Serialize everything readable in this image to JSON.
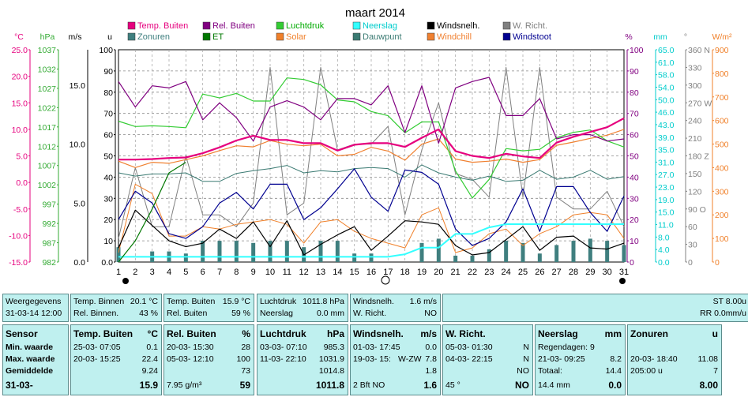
{
  "title": "maart 2014",
  "legend": [
    {
      "label": "Temp. Buiten",
      "color": "#e6007e",
      "textColor": "#e6007e"
    },
    {
      "label": "Rel. Buiten",
      "color": "#800080",
      "textColor": "#800080"
    },
    {
      "label": "Luchtdruk",
      "color": "#33cc33",
      "textColor": "#00aa00"
    },
    {
      "label": "Neerslag",
      "color": "#33ffff",
      "textColor": "#00cccc"
    },
    {
      "label": "Windsnelh.",
      "color": "#000000",
      "textColor": "#000000"
    },
    {
      "label": "W. Richt.",
      "color": "#808080",
      "textColor": "#808080"
    },
    {
      "label": "Zonuren",
      "color": "#3f7f7f",
      "textColor": "#3f7f7f"
    },
    {
      "label": "ET",
      "color": "#007700",
      "textColor": "#007700"
    },
    {
      "label": "Solar",
      "color": "#f0802a",
      "textColor": "#f0802a"
    },
    {
      "label": "Dauwpunt",
      "color": "#3a7a72",
      "textColor": "#3a7a72"
    },
    {
      "label": "Windchill",
      "color": "#f08030",
      "textColor": "#f08030"
    },
    {
      "label": "Windstoot",
      "color": "#000090",
      "textColor": "#000090"
    }
  ],
  "axes": {
    "temp": {
      "unit": "°C",
      "ticks": [
        "25.0",
        "20.0",
        "15.0",
        "10.0",
        "5.0",
        "0.0",
        "-5.0",
        "-10.0",
        "-15.0"
      ],
      "color": "#e6007e"
    },
    "pressure": {
      "unit": "hPa",
      "ticks": [
        "1037",
        "1032",
        "1027",
        "1022",
        "1017",
        "1012",
        "1007",
        "1002",
        "997",
        "992",
        "987",
        "982"
      ],
      "color": "#33aa33"
    },
    "wind": {
      "unit": "m/s",
      "ticks": [
        "15.0",
        "10.0",
        "5.0",
        "0.0"
      ],
      "color": "#000000"
    },
    "sun": {
      "unit": "u",
      "ticks": [
        "100",
        "90",
        "80",
        "70",
        "60",
        "50",
        "40",
        "30",
        "20",
        "10",
        "0.0"
      ],
      "color": "#000000"
    },
    "humidity": {
      "unit": "%",
      "ticks": [
        "100",
        "90",
        "80",
        "70",
        "60",
        "50",
        "40",
        "30",
        "20",
        "10",
        "0"
      ],
      "color": "#800080"
    },
    "rain": {
      "unit": "mm",
      "ticks": [
        "65.0",
        "61.0",
        "58.0",
        "54.0",
        "50.0",
        "46.0",
        "43.0",
        "39.0",
        "35.0",
        "31.0",
        "27.0",
        "23.0",
        "19.0",
        "15.0",
        "11.0",
        "8.0",
        "4.0",
        "0.0"
      ],
      "color": "#00cccc"
    },
    "dir": {
      "unit": "°",
      "ticks": [
        "360 N",
        "330",
        "300",
        "270 W",
        "240",
        "210",
        "180 Z",
        "150",
        "120",
        "90 O",
        "60",
        "30",
        "0"
      ],
      "color": "#808080"
    },
    "solar": {
      "unit": "W/m²",
      "ticks": [
        "900",
        "800",
        "700",
        "600",
        "500",
        "400",
        "300",
        "200",
        "100",
        "0"
      ],
      "color": "#f0802a"
    },
    "days": [
      "1",
      "2",
      "3",
      "4",
      "5",
      "6",
      "7",
      "8",
      "9",
      "10",
      "11",
      "12",
      "13",
      "14",
      "15",
      "16",
      "17",
      "18",
      "19",
      "20",
      "21",
      "22",
      "23",
      "24",
      "25",
      "26",
      "27",
      "28",
      "29",
      "30",
      "31"
    ]
  },
  "chart_data": {
    "type": "line",
    "x": [
      1,
      2,
      3,
      4,
      5,
      6,
      7,
      8,
      9,
      10,
      11,
      12,
      13,
      14,
      15,
      16,
      17,
      18,
      19,
      20,
      21,
      22,
      23,
      24,
      25,
      26,
      27,
      28,
      29,
      30,
      31
    ],
    "series": [
      {
        "name": "Temp. Buiten",
        "unit": "°C",
        "values": [
          4.3,
          4.3,
          4.4,
          4.6,
          4.7,
          5.5,
          6.6,
          7.9,
          8.8,
          8.0,
          8.0,
          7.4,
          7.4,
          6.0,
          7.1,
          7.4,
          7.4,
          6.7,
          8.4,
          10.0,
          5.9,
          5.0,
          4.6,
          5.4,
          4.9,
          4.6,
          7.5,
          8.6,
          9.5,
          10.4,
          12.1
        ]
      },
      {
        "name": "Rel. Buiten",
        "unit": "%",
        "values": [
          85,
          73,
          83,
          82,
          85,
          67,
          75,
          68,
          57,
          73,
          76,
          73,
          67,
          77,
          77,
          74,
          83,
          61,
          83,
          56,
          82,
          85,
          87,
          69,
          69,
          77,
          58,
          60,
          60,
          57,
          58
        ]
      },
      {
        "name": "Luchtdruk",
        "unit": "hPa",
        "values": [
          1018.5,
          1017.1,
          1017.3,
          1017.1,
          1016.8,
          1025.5,
          1024.5,
          1025.7,
          1023.7,
          1023.7,
          1029.7,
          1029.3,
          1027.9,
          1024.0,
          1023.5,
          1021.0,
          1019.9,
          1015.5,
          1018.3,
          1018.3,
          1005.6,
          998.6,
          1003.4,
          1011.4,
          1010.8,
          1011.2,
          1014.2,
          1015.6,
          1016.2,
          1013.4,
          1011.8
        ]
      },
      {
        "name": "Neerslag",
        "unit": "mm",
        "values": [
          1.6,
          1.6,
          1.6,
          1.6,
          1.6,
          1.6,
          1.6,
          1.6,
          1.6,
          1.6,
          1.6,
          1.6,
          1.6,
          1.6,
          1.6,
          1.6,
          1.6,
          2.4,
          4.4,
          4.4,
          8.6,
          8.6,
          10.6,
          11.6,
          11.6,
          11.6,
          11.6,
          11.6,
          11.6,
          11.6,
          11.6
        ]
      },
      {
        "name": "Windsnelh.",
        "unit": "m/s",
        "values": [
          1.2,
          4.4,
          3.1,
          1.8,
          1.3,
          1.6,
          2.8,
          2.0,
          3.4,
          1.3,
          3.5,
          0.6,
          1.5,
          2.3,
          3.0,
          1.0,
          2.2,
          3.5,
          3.4,
          3.2,
          1.4,
          0.6,
          0.8,
          1.9,
          3.0,
          1.0,
          2.1,
          2.2,
          1.2,
          1.1,
          1.6
        ]
      },
      {
        "name": "W. Richt.",
        "unit": "°",
        "values": [
          40,
          160,
          60,
          60,
          180,
          80,
          80,
          60,
          100,
          330,
          80,
          100,
          330,
          190,
          200,
          200,
          230,
          80,
          190,
          270,
          150,
          140,
          110,
          330,
          110,
          330,
          110,
          90,
          90,
          120,
          60
        ]
      },
      {
        "name": "Zonuren",
        "unit": "u",
        "values": [
          7,
          0,
          5,
          5,
          4,
          10,
          10,
          10,
          9,
          10,
          10,
          7,
          10,
          10,
          4,
          4,
          0,
          0,
          9,
          11,
          3,
          3,
          6,
          10,
          9,
          4,
          8,
          10,
          11,
          10,
          8
        ]
      },
      {
        "name": "ET",
        "unit": "",
        "values": [
          0,
          10,
          25,
          42,
          47,
          85,
          97,
          100,
          100,
          100,
          100,
          100,
          100,
          100,
          100,
          100,
          100,
          100,
          100,
          100,
          100,
          100,
          100,
          100,
          100,
          100,
          100,
          100,
          100,
          100,
          100
        ]
      },
      {
        "name": "Solar",
        "unit": "W/m²",
        "values": [
          40,
          330,
          290,
          110,
          110,
          150,
          140,
          160,
          170,
          180,
          160,
          80,
          170,
          180,
          130,
          100,
          80,
          60,
          200,
          230,
          40,
          60,
          120,
          140,
          70,
          120,
          150,
          200,
          210,
          200,
          100
        ]
      },
      {
        "name": "Dauwpunt",
        "unit": "°C",
        "values": [
          1.8,
          1.2,
          1.6,
          1.6,
          1.8,
          0.2,
          0.2,
          1.7,
          2.2,
          2.6,
          3.2,
          1.8,
          2.2,
          2.0,
          2.6,
          2.8,
          2.6,
          1.0,
          3.3,
          1.8,
          1.0,
          0.4,
          1.2,
          0.2,
          0.4,
          2.3,
          0.6,
          1.0,
          2.3,
          0.6,
          1.1
        ]
      },
      {
        "name": "Windchill",
        "unit": "°C",
        "values": [
          4.0,
          2.8,
          3.8,
          3.6,
          4.3,
          5.0,
          6.0,
          6.9,
          6.7,
          7.9,
          7.2,
          6.9,
          7.2,
          5.0,
          5.3,
          6.6,
          5.9,
          4.2,
          7.2,
          8.2,
          4.4,
          3.8,
          4.0,
          4.4,
          3.8,
          4.3,
          7.0,
          7.6,
          8.3,
          8.9,
          10.0
        ]
      },
      {
        "name": "Windstoot",
        "unit": "m/s",
        "values": [
          3.6,
          6.0,
          5.0,
          2.4,
          2.0,
          3.0,
          5.0,
          5.9,
          4.5,
          6.6,
          6.6,
          3.6,
          4.6,
          6.2,
          7.9,
          5.5,
          4.3,
          7.8,
          7.6,
          6.6,
          2.8,
          1.4,
          2.0,
          3.4,
          6.2,
          2.6,
          6.4,
          6.4,
          4.2,
          2.6,
          5.6
        ]
      }
    ]
  },
  "panels": {
    "weergegevens": {
      "l1": "Weergegevens",
      "l2": "31-03-14 12:00"
    },
    "tempBinnen": {
      "l1a": "Temp. Binnen",
      "l1b": "20.1 °C",
      "l2a": "Rel. Binnen.",
      "l2b": "43 %"
    },
    "tempBuiten": {
      "l1a": "Temp. Buiten",
      "l1b": "15.9 °C",
      "l2a": "Rel. Buiten",
      "l2b": "59 %"
    },
    "luchtdruk": {
      "l1a": "Luchtdruk",
      "l1b": "1011.8 hPa",
      "l2a": "Neerslag",
      "l2b": "0.0 mm"
    },
    "wind": {
      "l1a": "Windsnelh.",
      "l1b": "1.6 m/s",
      "l2a": "W. Richt.",
      "l2b": "NO"
    },
    "st": {
      "l1": "ST 8.00u",
      "l2": "RR 0.0mm/u"
    }
  },
  "table": {
    "sensor": {
      "h": "Sensor",
      "r1": "Min. waarde",
      "r2": "Max. waarde",
      "r3": "Gemiddelde",
      "r4": "31-03-"
    },
    "temp": {
      "h1": "Temp. Buiten",
      "h2": "°C",
      "r1a": "25-03-  07:05",
      "r1b": "0.1",
      "r2a": "20-03-  15:25",
      "r2b": "22.4",
      "r3b": "9.24",
      "r4b": "15.9"
    },
    "rel": {
      "h1": "Rel. Buiten",
      "h2": "%",
      "r1a": "20-03-  15:30",
      "r1b": "28",
      "r2a": "05-03-  12:10",
      "r2b": "100",
      "r3b": "73",
      "r4a": "7.95 g/m³",
      "r4b": "59"
    },
    "druk": {
      "h1": "Luchtdruk",
      "h2": "hPa",
      "r1a": "03-03-  07:10",
      "r1b": "985.3",
      "r2a": "11-03-  22:10",
      "r2b": "1031.9",
      "r3b": "1014.8",
      "r4b": "1011.8"
    },
    "wind": {
      "h1": "Windsnelh.",
      "h2": "m/s",
      "r1a": "01-03-  17:45",
      "r1b": "0.0",
      "r2a": "19-03-  15:",
      "r2m": "W-ZW",
      "r2b": "7.8",
      "r3b": "1.8",
      "r4a": "2 Bft NO",
      "r4b": "1.6"
    },
    "richt": {
      "h1": "W. Richt.",
      "r1a": "05-03-  01:30",
      "r1b": "N",
      "r2a": "04-03-  22:15",
      "r2b": "N",
      "r3b": "NO",
      "r4a": "45 °",
      "r4b": "NO"
    },
    "neerslag": {
      "h1": "Neerslag",
      "h2": "mm",
      "r1a": "Regendagen: 9",
      "r2a": "21-03-  09:25",
      "r2b": "8.2",
      "r3a": "Totaal:",
      "r3b": "14.4",
      "r4a": "14.4 mm",
      "r4b": "0.0"
    },
    "zon": {
      "h1": "Zonuren",
      "h2": "u",
      "r2a": "20-03-  18:40",
      "r2b": "11.08",
      "r3a": "205:00 u",
      "r3b": "7",
      "r4b": "8.00"
    }
  }
}
